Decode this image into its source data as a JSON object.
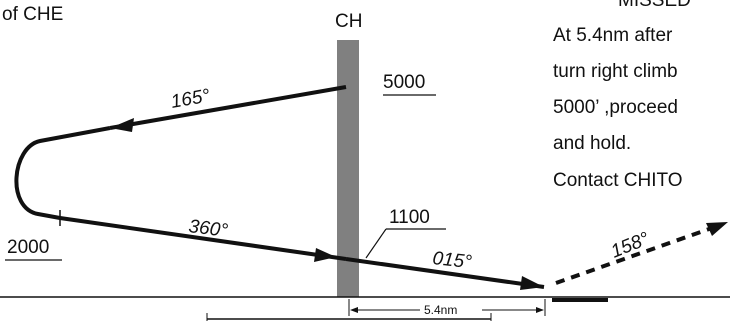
{
  "top_left_fragment": "of CHE",
  "station_label": "CH",
  "altitudes": {
    "top_right": "5000",
    "crossing": "1100",
    "bottom_left": "2000"
  },
  "headings": {
    "outbound": "165°",
    "inbound": "360°",
    "final": "015°",
    "missed": "158°"
  },
  "distance_label": "5.4nm",
  "missed_header_fragment": "MISSED",
  "missed_text_lines": [
    "At 5.4nm after",
    "turn right climb",
    "5000’ ,proceed",
    "and hold.",
    "Contact CHITO"
  ],
  "colors": {
    "runway_bar": "#808080",
    "line": "#111111"
  }
}
